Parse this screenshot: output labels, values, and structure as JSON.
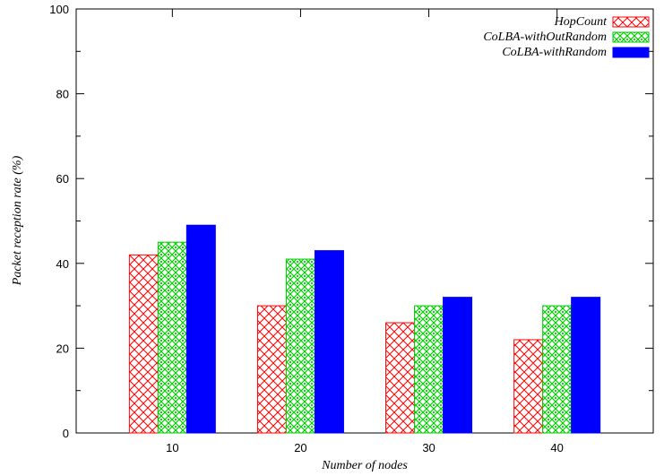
{
  "chart_data": {
    "type": "bar",
    "title": "",
    "xlabel": "Number of nodes",
    "ylabel": "Packet reception rate (%)",
    "ylim": [
      0,
      100
    ],
    "yticks": [
      0,
      20,
      40,
      60,
      80,
      100
    ],
    "categories": [
      "10",
      "20",
      "30",
      "40"
    ],
    "series": [
      {
        "name": "HopCount",
        "values": [
          42,
          30,
          26,
          22
        ],
        "color": "#ff0000",
        "fill": "crosshatch"
      },
      {
        "name": "CoLBA-withOutRandom",
        "values": [
          45,
          41,
          30,
          30
        ],
        "color": "#00cc00",
        "fill": "dotted-lattice"
      },
      {
        "name": "CoLBA-withRandom",
        "values": [
          49,
          43,
          32,
          32
        ],
        "color": "#0000ff",
        "fill": "solid"
      }
    ],
    "legend_position": "top-right",
    "grid": false
  }
}
